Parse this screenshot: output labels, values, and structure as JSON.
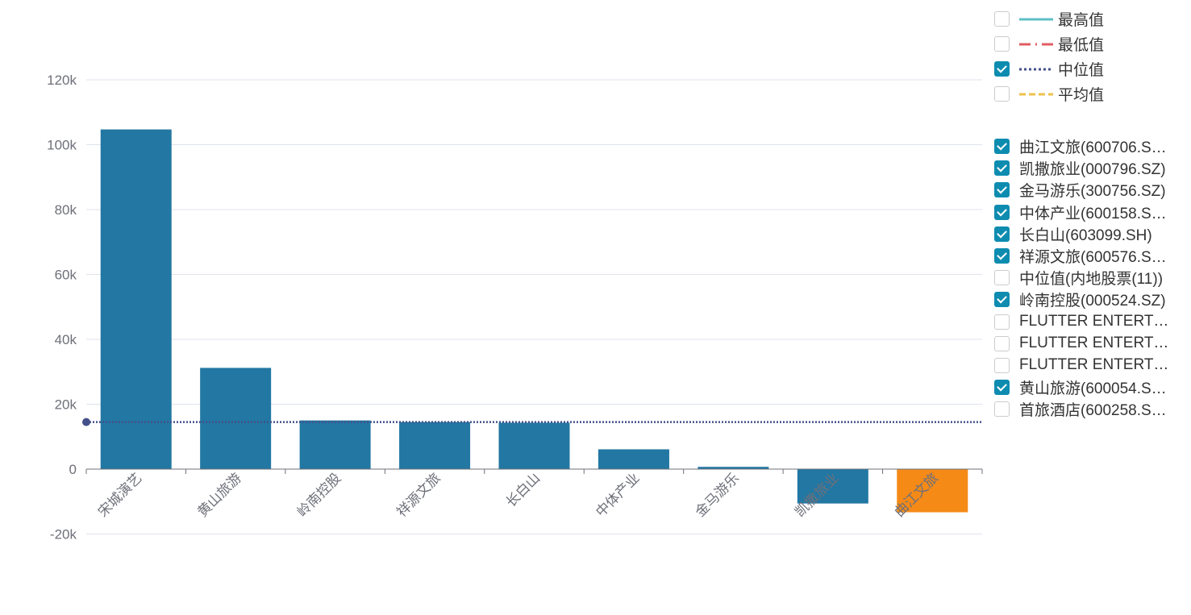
{
  "chart_data": {
    "type": "bar",
    "categories": [
      "宋城演艺",
      "黄山旅游",
      "岭南控股",
      "祥源文旅",
      "长白山",
      "中体产业",
      "金马游乐",
      "凯撒旅业",
      "曲江文旅"
    ],
    "values": [
      104700,
      31200,
      15000,
      14500,
      14300,
      6100,
      700,
      -10600,
      -13300
    ],
    "highlight_index": 8,
    "ylim": [
      -20000,
      120000
    ],
    "yticks": [
      -20000,
      0,
      20000,
      40000,
      60000,
      80000,
      100000,
      120000
    ],
    "ytick_labels": [
      "-20k",
      "0",
      "20k",
      "40k",
      "60k",
      "80k",
      "100k",
      "120k"
    ],
    "median_line": 14500,
    "grid": true,
    "colors": {
      "bar": "#2277a3",
      "highlight": "#f58a17",
      "median": "#44508a",
      "max": "#5fc0c5",
      "min": "#e05c62",
      "avg": "#ecc24a"
    },
    "stat_legend": [
      {
        "label": "最高值",
        "checked": false,
        "style": "solid",
        "color": "#5fc0c5"
      },
      {
        "label": "最低值",
        "checked": false,
        "style": "dashdot",
        "color": "#e05c62"
      },
      {
        "label": "中位值",
        "checked": true,
        "style": "dotted",
        "color": "#44508a"
      },
      {
        "label": "平均值",
        "checked": false,
        "style": "dashed",
        "color": "#ecc24a"
      }
    ],
    "series_legend": [
      {
        "label": "曲江文旅(600706.S…",
        "checked": true
      },
      {
        "label": "凯撒旅业(000796.SZ)",
        "checked": true
      },
      {
        "label": "金马游乐(300756.SZ)",
        "checked": true
      },
      {
        "label": "中体产业(600158.S…",
        "checked": true
      },
      {
        "label": "长白山(603099.SH)",
        "checked": true
      },
      {
        "label": "祥源文旅(600576.S…",
        "checked": true
      },
      {
        "label": "中位值(内地股票(11))",
        "checked": false
      },
      {
        "label": "岭南控股(000524.SZ)",
        "checked": true
      },
      {
        "label": "FLUTTER ENTERT…",
        "checked": false
      },
      {
        "label": "FLUTTER ENTERT…",
        "checked": false
      },
      {
        "label": "FLUTTER ENTERT…",
        "checked": false
      },
      {
        "label": "黄山旅游(600054.S…",
        "checked": true
      },
      {
        "label": "首旅酒店(600258.S…",
        "checked": false
      }
    ]
  }
}
